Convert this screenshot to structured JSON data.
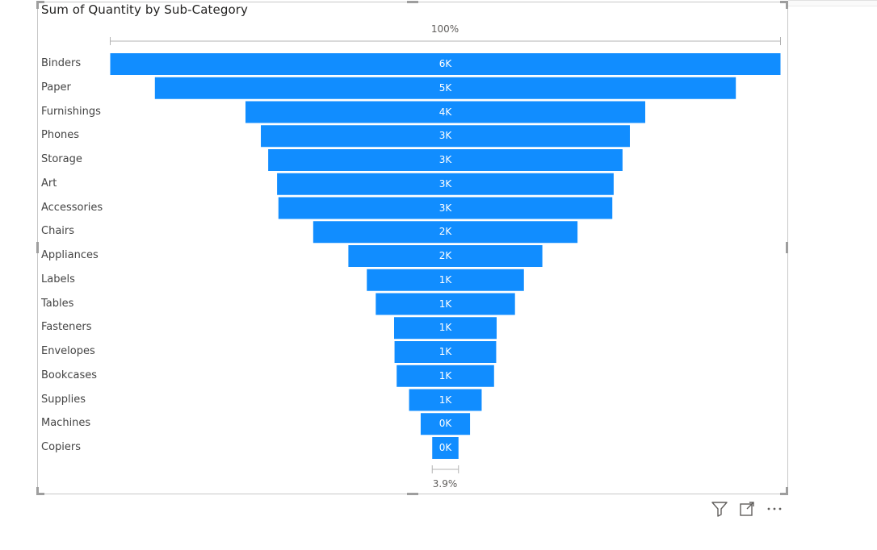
{
  "visual": {
    "title": "Sum of Quantity by Sub-Category",
    "top_percent_label": "100%",
    "bottom_percent_label": "3.9%"
  },
  "colors": {
    "bar": "#118dff",
    "text": "#444444"
  },
  "icons": [
    "filter-icon",
    "focus-mode-icon",
    "more-options-icon"
  ],
  "chart_data": {
    "type": "bar",
    "orientation": "funnel",
    "title": "Sum of Quantity by Sub-Category",
    "categories": [
      "Binders",
      "Paper",
      "Furnishings",
      "Phones",
      "Storage",
      "Art",
      "Accessories",
      "Chairs",
      "Appliances",
      "Labels",
      "Tables",
      "Fasteners",
      "Envelopes",
      "Bookcases",
      "Supplies",
      "Machines",
      "Copiers"
    ],
    "values": [
      5974,
      5178,
      3563,
      3289,
      3158,
      3000,
      2976,
      2356,
      1729,
      1400,
      1241,
      914,
      906,
      868,
      647,
      440,
      234
    ],
    "data_labels": [
      "6K",
      "5K",
      "4K",
      "3K",
      "3K",
      "3K",
      "3K",
      "2K",
      "2K",
      "1K",
      "1K",
      "1K",
      "1K",
      "1K",
      "1K",
      "0K",
      "0K"
    ],
    "percent_of_first_labels": {
      "top": "100%",
      "bottom": "3.9%"
    }
  }
}
